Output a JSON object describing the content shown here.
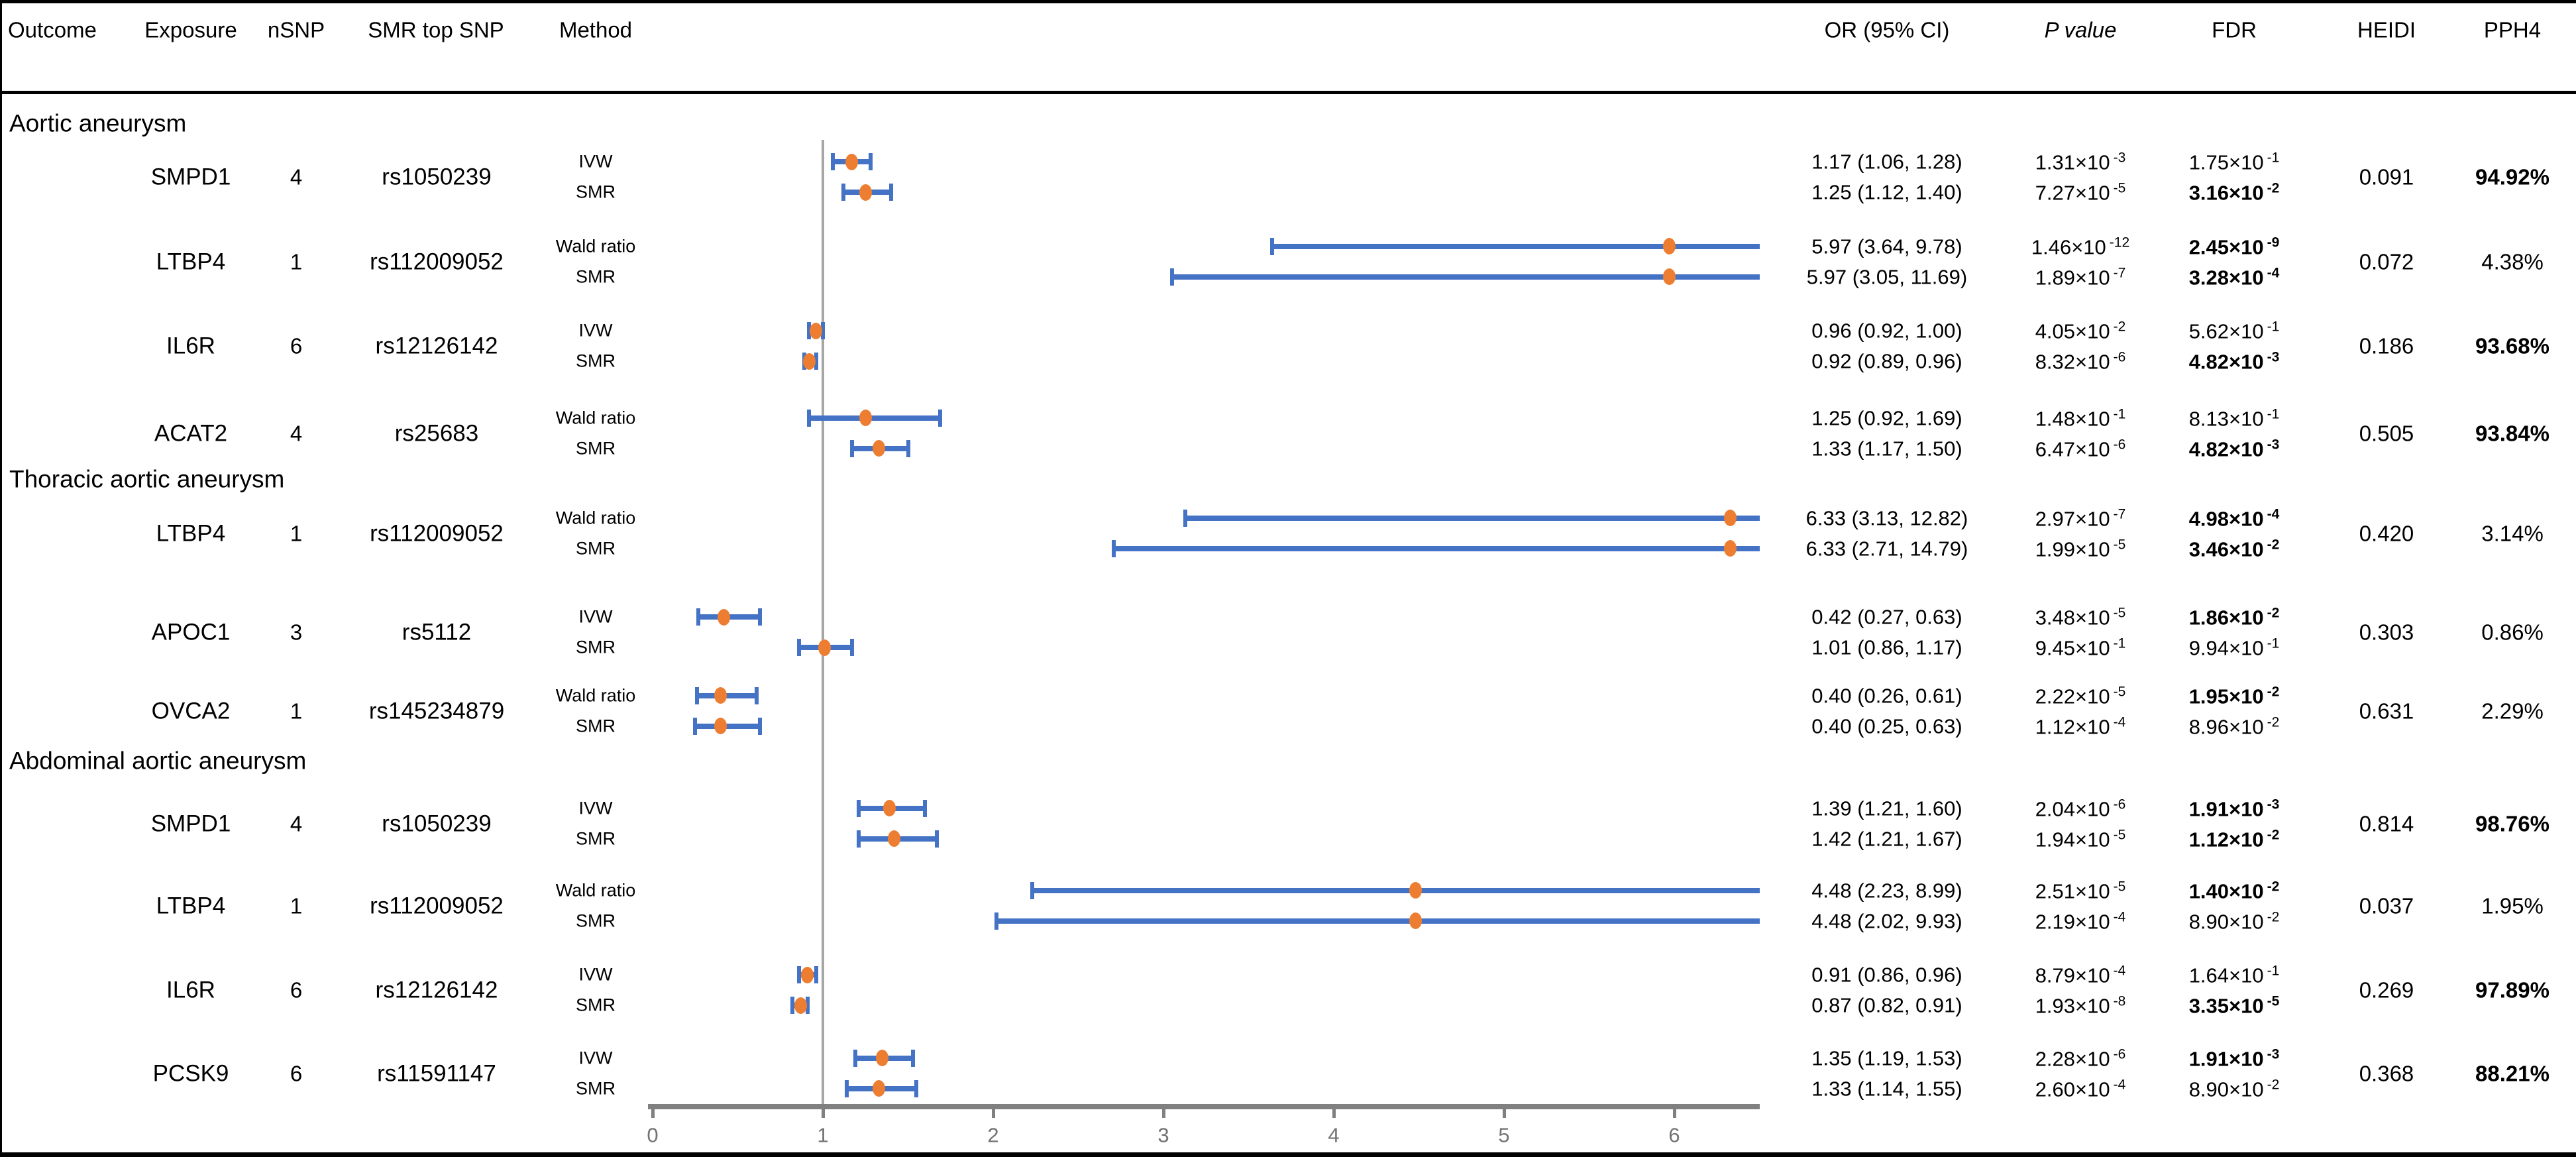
{
  "header": {
    "left": [
      "Outcome",
      "Exposure",
      "nSNP",
      "SMR top SNP",
      "Method"
    ],
    "right": [
      "OR (95% CI)",
      "P value",
      "FDR",
      "HEIDI",
      "PPH4"
    ]
  },
  "colors": {
    "ci_bar_blue": "#4472C4",
    "marker_orange": "#ED7D31",
    "ref_line_gray": "#A6A6A6",
    "axis_gray": "#808080",
    "tick_label_gray": "#737373",
    "text_black": "#000000"
  },
  "chart_data": {
    "type": "scatter",
    "variant": "forest-plot",
    "title": "",
    "xlabel": "",
    "x_axis": {
      "ticks": [
        0,
        1,
        2,
        3,
        4,
        5,
        6
      ],
      "min": 0,
      "max": 6.5,
      "reference_line": 1,
      "grid": false
    },
    "sections": [
      {
        "outcome": "Aortic aneurysm",
        "rows": [
          {
            "exposure": "SMPD1",
            "nsnp": "4",
            "snp": "rs1050239",
            "heidi": "0.091",
            "pph4": "94.92%",
            "pph4_bold": true,
            "lines": [
              {
                "method": "IVW",
                "or_text": "1.17 (1.06, 1.28)",
                "est": 1.17,
                "lo": 1.06,
                "hi": 1.28,
                "p_m": "1.31×10",
                "p_e": "-3",
                "fdr_m": "1.75×10",
                "fdr_e": "-1",
                "fdr_bold": false
              },
              {
                "method": "SMR",
                "or_text": "1.25 (1.12, 1.40)",
                "est": 1.25,
                "lo": 1.12,
                "hi": 1.4,
                "p_m": "7.27×10",
                "p_e": "-5",
                "fdr_m": "3.16×10",
                "fdr_e": "-2",
                "fdr_bold": true
              }
            ]
          },
          {
            "exposure": "LTBP4",
            "nsnp": "1",
            "snp": "rs112009052",
            "heidi": "0.072",
            "pph4": "4.38%",
            "pph4_bold": false,
            "lines": [
              {
                "method": "Wald ratio",
                "or_text": "5.97 (3.64, 9.78)",
                "est": 5.97,
                "lo": 3.64,
                "hi": 9.78,
                "p_m": "1.46×10",
                "p_e": "-12",
                "fdr_m": "2.45×10",
                "fdr_e": "-9",
                "fdr_bold": true
              },
              {
                "method": "SMR",
                "or_text": "5.97 (3.05, 11.69)",
                "est": 5.97,
                "lo": 3.05,
                "hi": 11.69,
                "p_m": "1.89×10",
                "p_e": "-7",
                "fdr_m": "3.28×10",
                "fdr_e": "-4",
                "fdr_bold": true
              }
            ]
          },
          {
            "exposure": "IL6R",
            "nsnp": "6",
            "snp": "rs12126142",
            "heidi": "0.186",
            "pph4": "93.68%",
            "pph4_bold": true,
            "lines": [
              {
                "method": "IVW",
                "or_text": "0.96 (0.92, 1.00)",
                "est": 0.96,
                "lo": 0.92,
                "hi": 1.0,
                "p_m": "4.05×10",
                "p_e": "-2",
                "fdr_m": "5.62×10",
                "fdr_e": "-1",
                "fdr_bold": false
              },
              {
                "method": "SMR",
                "or_text": "0.92 (0.89, 0.96)",
                "est": 0.92,
                "lo": 0.89,
                "hi": 0.96,
                "p_m": "8.32×10",
                "p_e": "-6",
                "fdr_m": "4.82×10",
                "fdr_e": "-3",
                "fdr_bold": true
              }
            ]
          },
          {
            "exposure": "ACAT2",
            "nsnp": "4",
            "snp": "rs25683",
            "heidi": "0.505",
            "pph4": "93.84%",
            "pph4_bold": true,
            "lines": [
              {
                "method": "Wald ratio",
                "or_text": "1.25 (0.92, 1.69)",
                "est": 1.25,
                "lo": 0.92,
                "hi": 1.69,
                "p_m": "1.48×10",
                "p_e": "-1",
                "fdr_m": "8.13×10",
                "fdr_e": "-1",
                "fdr_bold": false
              },
              {
                "method": "SMR",
                "or_text": "1.33 (1.17, 1.50)",
                "est": 1.33,
                "lo": 1.17,
                "hi": 1.5,
                "p_m": "6.47×10",
                "p_e": "-6",
                "fdr_m": "4.82×10",
                "fdr_e": "-3",
                "fdr_bold": true
              }
            ]
          }
        ]
      },
      {
        "outcome": "Thoracic aortic aneurysm",
        "rows": [
          {
            "exposure": "LTBP4",
            "nsnp": "1",
            "snp": "rs112009052",
            "heidi": "0.420",
            "pph4": "3.14%",
            "pph4_bold": false,
            "lines": [
              {
                "method": "Wald ratio",
                "or_text": "6.33 (3.13, 12.82)",
                "est": 6.33,
                "lo": 3.13,
                "hi": 12.82,
                "p_m": "2.97×10",
                "p_e": "-7",
                "fdr_m": "4.98×10",
                "fdr_e": "-4",
                "fdr_bold": true
              },
              {
                "method": "SMR",
                "or_text": "6.33 (2.71, 14.79)",
                "est": 6.33,
                "lo": 2.71,
                "hi": 14.79,
                "p_m": "1.99×10",
                "p_e": "-5",
                "fdr_m": "3.46×10",
                "fdr_e": "-2",
                "fdr_bold": true
              }
            ]
          },
          {
            "exposure": "APOC1",
            "nsnp": "3",
            "snp": "rs5112",
            "heidi": "0.303",
            "pph4": "0.86%",
            "pph4_bold": false,
            "lines": [
              {
                "method": "IVW",
                "or_text": "0.42 (0.27, 0.63)",
                "est": 0.42,
                "lo": 0.27,
                "hi": 0.63,
                "p_m": "3.48×10",
                "p_e": "-5",
                "fdr_m": "1.86×10",
                "fdr_e": "-2",
                "fdr_bold": true
              },
              {
                "method": "SMR",
                "or_text": "1.01 (0.86, 1.17)",
                "est": 1.01,
                "lo": 0.86,
                "hi": 1.17,
                "p_m": "9.45×10",
                "p_e": "-1",
                "fdr_m": "9.94×10",
                "fdr_e": "-1",
                "fdr_bold": false
              }
            ]
          },
          {
            "exposure": "OVCA2",
            "nsnp": "1",
            "snp": "rs145234879",
            "heidi": "0.631",
            "pph4": "2.29%",
            "pph4_bold": false,
            "lines": [
              {
                "method": "Wald ratio",
                "or_text": "0.40 (0.26, 0.61)",
                "est": 0.4,
                "lo": 0.26,
                "hi": 0.61,
                "p_m": "2.22×10",
                "p_e": "-5",
                "fdr_m": "1.95×10",
                "fdr_e": "-2",
                "fdr_bold": true
              },
              {
                "method": "SMR",
                "or_text": "0.40 (0.25, 0.63)",
                "est": 0.4,
                "lo": 0.25,
                "hi": 0.63,
                "p_m": "1.12×10",
                "p_e": "-4",
                "fdr_m": "8.96×10",
                "fdr_e": "-2",
                "fdr_bold": false
              }
            ]
          }
        ]
      },
      {
        "outcome": "Abdominal aortic aneurysm",
        "rows": [
          {
            "exposure": "SMPD1",
            "nsnp": "4",
            "snp": "rs1050239",
            "heidi": "0.814",
            "pph4": "98.76%",
            "pph4_bold": true,
            "lines": [
              {
                "method": "IVW",
                "or_text": "1.39 (1.21, 1.60)",
                "est": 1.39,
                "lo": 1.21,
                "hi": 1.6,
                "p_m": "2.04×10",
                "p_e": "-6",
                "fdr_m": "1.91×10",
                "fdr_e": "-3",
                "fdr_bold": true
              },
              {
                "method": "SMR",
                "or_text": "1.42 (1.21, 1.67)",
                "est": 1.42,
                "lo": 1.21,
                "hi": 1.67,
                "p_m": "1.94×10",
                "p_e": "-5",
                "fdr_m": "1.12×10",
                "fdr_e": "-2",
                "fdr_bold": true
              }
            ]
          },
          {
            "exposure": "LTBP4",
            "nsnp": "1",
            "snp": "rs112009052",
            "heidi": "0.037",
            "pph4": "1.95%",
            "pph4_bold": false,
            "lines": [
              {
                "method": "Wald ratio",
                "or_text": "4.48 (2.23, 8.99)",
                "est": 4.48,
                "lo": 2.23,
                "hi": 8.99,
                "p_m": "2.51×10",
                "p_e": "-5",
                "fdr_m": "1.40×10",
                "fdr_e": "-2",
                "fdr_bold": true
              },
              {
                "method": "SMR",
                "or_text": "4.48 (2.02, 9.93)",
                "est": 4.48,
                "lo": 2.02,
                "hi": 9.93,
                "p_m": "2.19×10",
                "p_e": "-4",
                "fdr_m": "8.90×10",
                "fdr_e": "-2",
                "fdr_bold": false
              }
            ]
          },
          {
            "exposure": "IL6R",
            "nsnp": "6",
            "snp": "rs12126142",
            "heidi": "0.269",
            "pph4": "97.89%",
            "pph4_bold": true,
            "lines": [
              {
                "method": "IVW",
                "or_text": "0.91 (0.86, 0.96)",
                "est": 0.91,
                "lo": 0.86,
                "hi": 0.96,
                "p_m": "8.79×10",
                "p_e": "-4",
                "fdr_m": "1.64×10",
                "fdr_e": "-1",
                "fdr_bold": false
              },
              {
                "method": "SMR",
                "or_text": "0.87 (0.82, 0.91)",
                "est": 0.87,
                "lo": 0.82,
                "hi": 0.91,
                "p_m": "1.93×10",
                "p_e": "-8",
                "fdr_m": "3.35×10",
                "fdr_e": "-5",
                "fdr_bold": true
              }
            ]
          },
          {
            "exposure": "PCSK9",
            "nsnp": "6",
            "snp": "rs11591147",
            "heidi": "0.368",
            "pph4": "88.21%",
            "pph4_bold": true,
            "lines": [
              {
                "method": "IVW",
                "or_text": "1.35 (1.19, 1.53)",
                "est": 1.35,
                "lo": 1.19,
                "hi": 1.53,
                "p_m": "2.28×10",
                "p_e": "-6",
                "fdr_m": "1.91×10",
                "fdr_e": "-3",
                "fdr_bold": true
              },
              {
                "method": "SMR",
                "or_text": "1.33 (1.14, 1.55)",
                "est": 1.33,
                "lo": 1.14,
                "hi": 1.55,
                "p_m": "2.60×10",
                "p_e": "-4",
                "fdr_m": "8.90×10",
                "fdr_e": "-2",
                "fdr_bold": false
              }
            ]
          }
        ]
      }
    ]
  }
}
